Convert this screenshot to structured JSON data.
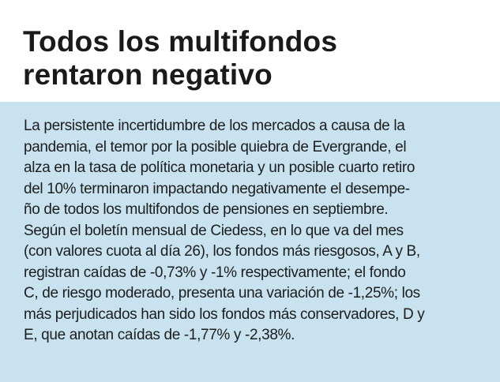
{
  "article": {
    "headline": [
      "Todos los multifondos",
      "rentaron negativo"
    ],
    "body_lines": [
      "La persistente incertidumbre de los mercados a causa de la",
      "pandemia, el temor por la posible quiebra de Evergrande, el",
      "alza en la tasa de política monetaria y un posible cuarto retiro",
      "del 10% terminaron impactando negativamente el desempe-",
      "ño de todos los multifondos de pensiones en septiembre.",
      "Según el boletín mensual de Ciedess, en lo que va del mes",
      "(con valores cuota al día 26), los fondos más riesgosos, A y B,",
      "registran caídas de -0,73% y -1% respectivamente; el fondo",
      "C, de riesgo moderado, presenta una variación de -1,25%; los",
      "más perjudicados han sido los fondos más conservadores, D y",
      "E, que anotan caídas de -1,77% y -2,38%."
    ]
  },
  "colors": {
    "box_background": "#c8e3ef",
    "text": "#1d1d1d"
  }
}
